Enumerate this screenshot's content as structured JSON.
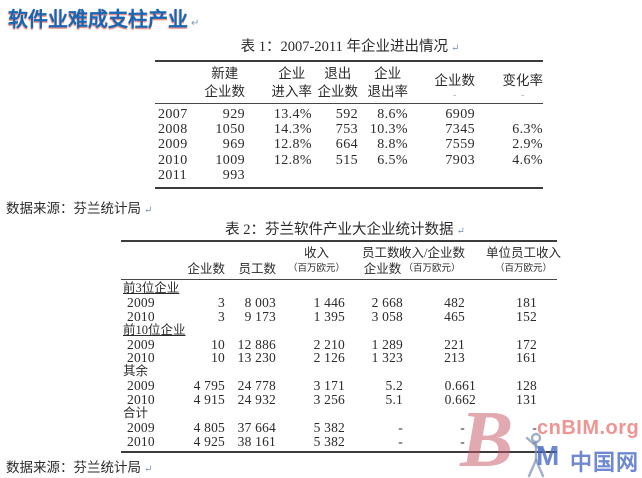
{
  "page": {
    "title": "软件业难成支柱产业",
    "return_mark": "↵"
  },
  "table1": {
    "caption": "表 1：2007-2011 年企业进出情况",
    "columns": [
      {
        "l1": "",
        "l2": ""
      },
      {
        "l1": "新建",
        "l2": "企业数"
      },
      {
        "l1": "企业",
        "l2": "进入率"
      },
      {
        "l1": "退出",
        "l2": "企业数"
      },
      {
        "l1": "企业",
        "l2": "退出率"
      },
      {
        "l1": "企业数",
        "dash": "-"
      },
      {
        "l1": "变化率",
        "dash": "-"
      }
    ],
    "rows": [
      [
        "2007",
        "929",
        "13.4%",
        "592",
        "8.6%",
        "6909",
        ""
      ],
      [
        "2008",
        "1050",
        "14.3%",
        "753",
        "10.3%",
        "7345",
        "6.3%"
      ],
      [
        "2009",
        "969",
        "12.8%",
        "664",
        "8.8%",
        "7559",
        "2.9%"
      ],
      [
        "2010",
        "1009",
        "12.8%",
        "515",
        "6.5%",
        "7903",
        "4.6%"
      ],
      [
        "2011",
        "993",
        "",
        "",
        "",
        "",
        ""
      ]
    ],
    "source": "数据来源：芬兰统计局"
  },
  "table2": {
    "caption": "表 2：芬兰软件产业大企业统计数据",
    "columns": [
      {
        "l1": "",
        "l2": ""
      },
      {
        "l1": "",
        "l2": "企业数"
      },
      {
        "l1": "",
        "l2": "员工数"
      },
      {
        "l1": "收入",
        "l2": "（百万欧元）",
        "small": true
      },
      {
        "l1": "员工数/",
        "l2": "企业数"
      },
      {
        "l1": "收入/企业数",
        "l2": "（百万欧元）",
        "small": true
      },
      {
        "l1": "单位员工收入",
        "l2": "（百万欧元）",
        "small": true
      }
    ],
    "groups": [
      {
        "label": "前3位企业",
        "underline": true,
        "rows": [
          [
            "2009",
            "3",
            "8 003",
            "1 446",
            "2 668",
            "482",
            "181"
          ],
          [
            "2010",
            "3",
            "9 173",
            "1 395",
            "3 058",
            "465",
            "152"
          ]
        ]
      },
      {
        "label": "前10位企业",
        "underline": true,
        "rows": [
          [
            "2009",
            "10",
            "12 886",
            "2 210",
            "1 289",
            "221",
            "172"
          ],
          [
            "2010",
            "10",
            "13 230",
            "2 126",
            "1 323",
            "213",
            "161"
          ]
        ]
      },
      {
        "label": "其余",
        "underline": false,
        "rows": [
          [
            "2009",
            "4 795",
            "24 778",
            "3 171",
            "5.2",
            "0.661",
            "128"
          ],
          [
            "2010",
            "4 915",
            "24 932",
            "3 256",
            "5.1",
            "0.662",
            "131"
          ]
        ]
      },
      {
        "label": "合计",
        "underline": false,
        "rows": [
          [
            "2009",
            "4 805",
            "37 664",
            "5 382",
            "-",
            "-",
            "-"
          ],
          [
            "2010",
            "4 925",
            "38 161",
            "5 382",
            "-",
            "-",
            "-"
          ]
        ]
      }
    ],
    "source": "数据来源：芬兰统计局"
  },
  "watermark": {
    "b": "B",
    "site": "cnBIM.org",
    "m": "M",
    "cn": "中国网",
    "colors": {
      "site_red": "#eb8280",
      "logo_red": "#c75462",
      "cn_blue": "#4a6cc5"
    }
  },
  "colors": {
    "title_blue": "#1567b6",
    "title_fringe": "#d83c2e",
    "rule": "#3c3c3c",
    "text": "#2b2b2b"
  }
}
